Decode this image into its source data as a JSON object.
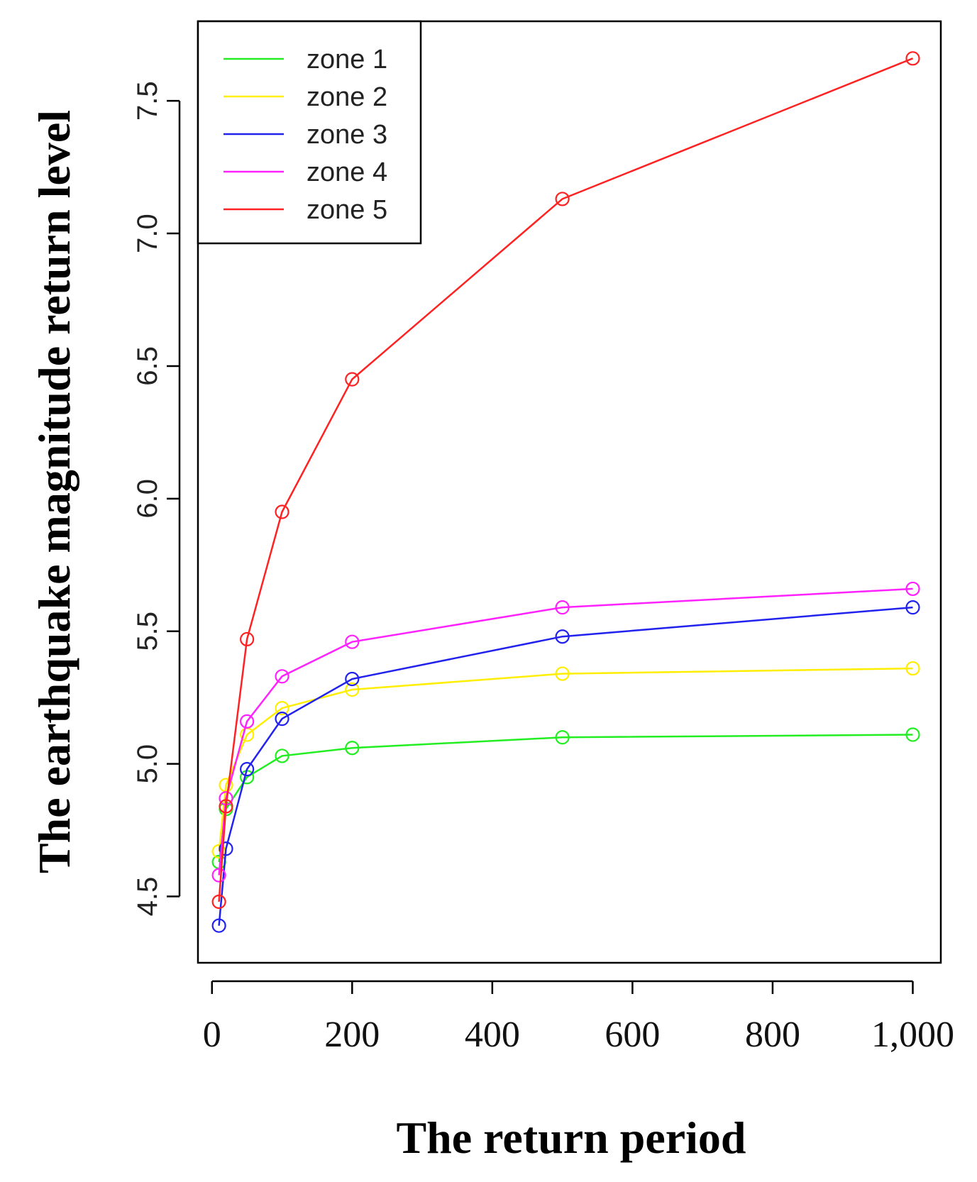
{
  "chart_data": {
    "type": "line",
    "title": "",
    "xlabel": "The return period",
    "ylabel": "The earthquake magnitude return level",
    "x": [
      10,
      20,
      50,
      100,
      200,
      500,
      1000
    ],
    "xlim": [
      -20,
      1040
    ],
    "ylim": [
      4.25,
      7.8
    ],
    "xticks": [
      0,
      200,
      400,
      600,
      800,
      1000
    ],
    "xtick_labels": [
      "0",
      "200",
      "400",
      "600",
      "800",
      "1,000"
    ],
    "yticks": [
      4.5,
      5.0,
      5.5,
      6.0,
      6.5,
      7.0,
      7.5
    ],
    "ytick_labels": [
      "4.5",
      "5.0",
      "5.5",
      "6.0",
      "6.5",
      "7.0",
      "7.5"
    ],
    "grid": false,
    "legend_position": "top-left",
    "markers": "open-circle",
    "series": [
      {
        "name": "zone 1",
        "color": "#22ee22",
        "values": [
          4.63,
          4.83,
          4.95,
          5.03,
          5.06,
          5.1,
          5.11
        ]
      },
      {
        "name": "zone 2",
        "color": "#ffee00",
        "values": [
          4.67,
          4.92,
          5.11,
          5.21,
          5.28,
          5.34,
          5.36
        ]
      },
      {
        "name": "zone 3",
        "color": "#2222ee",
        "values": [
          4.39,
          4.68,
          4.98,
          5.17,
          5.32,
          5.48,
          5.59
        ]
      },
      {
        "name": "zone 4",
        "color": "#ff22ff",
        "values": [
          4.58,
          4.87,
          5.16,
          5.33,
          5.46,
          5.59,
          5.66
        ]
      },
      {
        "name": "zone 5",
        "color": "#ff2222",
        "values": [
          4.48,
          4.84,
          5.47,
          5.95,
          6.45,
          7.13,
          7.66
        ]
      }
    ]
  }
}
